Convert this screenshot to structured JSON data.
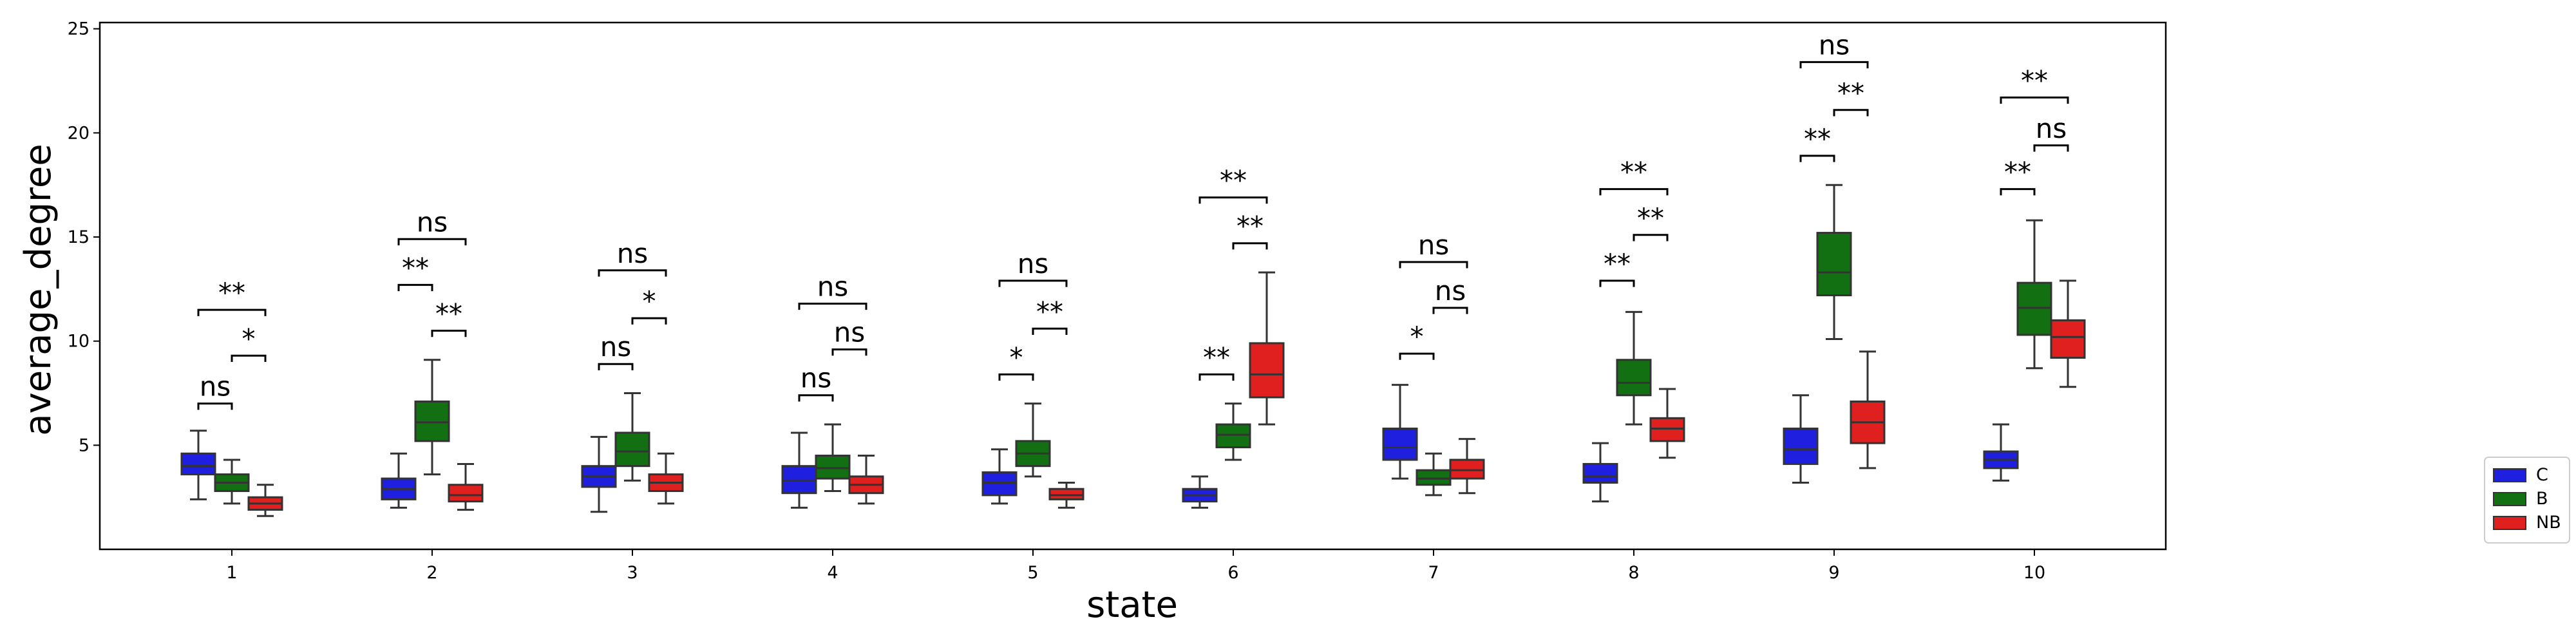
{
  "chart_data": {
    "type": "boxplot",
    "xlabel": "state",
    "ylabel": "average_degree",
    "ylim": [
      0,
      25.3
    ],
    "yticks": [
      5,
      10,
      15,
      20,
      25
    ],
    "categories": [
      "1",
      "2",
      "3",
      "4",
      "5",
      "6",
      "7",
      "8",
      "9",
      "10"
    ],
    "legend": {
      "position": "outside-right-bottom"
    },
    "series": [
      {
        "name": "C",
        "color": "#1f1fe0",
        "boxes": [
          {
            "whislo": 2.4,
            "q1": 3.6,
            "med": 4.0,
            "q3": 4.6,
            "whishi": 5.7
          },
          {
            "whislo": 2.0,
            "q1": 2.4,
            "med": 2.9,
            "q3": 3.4,
            "whishi": 4.6
          },
          {
            "whislo": 1.8,
            "q1": 3.0,
            "med": 3.5,
            "q3": 4.0,
            "whishi": 5.4
          },
          {
            "whislo": 2.0,
            "q1": 2.7,
            "med": 3.3,
            "q3": 4.0,
            "whishi": 5.6
          },
          {
            "whislo": 2.2,
            "q1": 2.6,
            "med": 3.2,
            "q3": 3.7,
            "whishi": 4.8
          },
          {
            "whislo": 2.0,
            "q1": 2.3,
            "med": 2.6,
            "q3": 2.9,
            "whishi": 3.5
          },
          {
            "whislo": 3.4,
            "q1": 4.3,
            "med": 4.9,
            "q3": 5.8,
            "whishi": 7.9
          },
          {
            "whislo": 2.3,
            "q1": 3.2,
            "med": 3.5,
            "q3": 4.1,
            "whishi": 5.1
          },
          {
            "whislo": 3.2,
            "q1": 4.1,
            "med": 4.8,
            "q3": 5.8,
            "whishi": 7.4
          },
          {
            "whislo": 3.3,
            "q1": 3.9,
            "med": 4.3,
            "q3": 4.7,
            "whishi": 6.0
          }
        ]
      },
      {
        "name": "B",
        "color": "#127012",
        "boxes": [
          {
            "whislo": 2.2,
            "q1": 2.8,
            "med": 3.2,
            "q3": 3.6,
            "whishi": 4.3
          },
          {
            "whislo": 3.6,
            "q1": 5.2,
            "med": 6.1,
            "q3": 7.1,
            "whishi": 9.1
          },
          {
            "whislo": 3.3,
            "q1": 4.0,
            "med": 4.7,
            "q3": 5.6,
            "whishi": 7.5
          },
          {
            "whislo": 2.8,
            "q1": 3.4,
            "med": 3.9,
            "q3": 4.5,
            "whishi": 6.0
          },
          {
            "whislo": 3.5,
            "q1": 4.0,
            "med": 4.6,
            "q3": 5.2,
            "whishi": 7.0
          },
          {
            "whislo": 4.3,
            "q1": 4.9,
            "med": 5.5,
            "q3": 6.0,
            "whishi": 7.0
          },
          {
            "whislo": 2.6,
            "q1": 3.1,
            "med": 3.4,
            "q3": 3.8,
            "whishi": 4.6
          },
          {
            "whislo": 6.0,
            "q1": 7.4,
            "med": 8.0,
            "q3": 9.1,
            "whishi": 11.4
          },
          {
            "whislo": 10.1,
            "q1": 12.2,
            "med": 13.3,
            "q3": 15.2,
            "whishi": 17.5
          },
          {
            "whislo": 8.7,
            "q1": 10.3,
            "med": 11.6,
            "q3": 12.8,
            "whishi": 15.8
          }
        ]
      },
      {
        "name": "NB",
        "color": "#e01f1f",
        "boxes": [
          {
            "whislo": 1.6,
            "q1": 1.9,
            "med": 2.2,
            "q3": 2.5,
            "whishi": 3.1
          },
          {
            "whislo": 1.9,
            "q1": 2.3,
            "med": 2.6,
            "q3": 3.1,
            "whishi": 4.1
          },
          {
            "whislo": 2.2,
            "q1": 2.8,
            "med": 3.2,
            "q3": 3.6,
            "whishi": 4.6
          },
          {
            "whislo": 2.2,
            "q1": 2.7,
            "med": 3.1,
            "q3": 3.5,
            "whishi": 4.5
          },
          {
            "whislo": 2.0,
            "q1": 2.4,
            "med": 2.6,
            "q3": 2.9,
            "whishi": 3.2
          },
          {
            "whislo": 6.0,
            "q1": 7.3,
            "med": 8.4,
            "q3": 9.9,
            "whishi": 13.3
          },
          {
            "whislo": 2.7,
            "q1": 3.4,
            "med": 3.8,
            "q3": 4.3,
            "whishi": 5.3
          },
          {
            "whislo": 4.4,
            "q1": 5.2,
            "med": 5.8,
            "q3": 6.3,
            "whishi": 7.7
          },
          {
            "whislo": 3.9,
            "q1": 5.1,
            "med": 6.1,
            "q3": 7.1,
            "whishi": 9.5
          },
          {
            "whislo": 7.8,
            "q1": 9.2,
            "med": 10.2,
            "q3": 11.0,
            "whishi": 12.9
          }
        ]
      }
    ],
    "annotations": [
      {
        "category": "1",
        "from": "C",
        "to": "B",
        "y": 7.0,
        "label": "ns"
      },
      {
        "category": "1",
        "from": "B",
        "to": "NB",
        "y": 9.3,
        "label": "*"
      },
      {
        "category": "1",
        "from": "C",
        "to": "NB",
        "y": 11.5,
        "label": "**"
      },
      {
        "category": "2",
        "from": "C",
        "to": "B",
        "y": 12.7,
        "label": "**"
      },
      {
        "category": "2",
        "from": "B",
        "to": "NB",
        "y": 10.5,
        "label": "**"
      },
      {
        "category": "2",
        "from": "C",
        "to": "NB",
        "y": 14.9,
        "label": "ns"
      },
      {
        "category": "3",
        "from": "C",
        "to": "B",
        "y": 8.9,
        "label": "ns"
      },
      {
        "category": "3",
        "from": "B",
        "to": "NB",
        "y": 11.1,
        "label": "*"
      },
      {
        "category": "3",
        "from": "C",
        "to": "NB",
        "y": 13.4,
        "label": "ns"
      },
      {
        "category": "4",
        "from": "C",
        "to": "B",
        "y": 7.4,
        "label": "ns"
      },
      {
        "category": "4",
        "from": "B",
        "to": "NB",
        "y": 9.6,
        "label": "ns"
      },
      {
        "category": "4",
        "from": "C",
        "to": "NB",
        "y": 11.8,
        "label": "ns"
      },
      {
        "category": "5",
        "from": "C",
        "to": "B",
        "y": 8.4,
        "label": "*"
      },
      {
        "category": "5",
        "from": "B",
        "to": "NB",
        "y": 10.6,
        "label": "**"
      },
      {
        "category": "5",
        "from": "C",
        "to": "NB",
        "y": 12.9,
        "label": "ns"
      },
      {
        "category": "6",
        "from": "C",
        "to": "B",
        "y": 8.4,
        "label": "**"
      },
      {
        "category": "6",
        "from": "B",
        "to": "NB",
        "y": 14.7,
        "label": "**"
      },
      {
        "category": "6",
        "from": "C",
        "to": "NB",
        "y": 16.9,
        "label": "**"
      },
      {
        "category": "7",
        "from": "C",
        "to": "B",
        "y": 9.4,
        "label": "*"
      },
      {
        "category": "7",
        "from": "B",
        "to": "NB",
        "y": 11.6,
        "label": "ns"
      },
      {
        "category": "7",
        "from": "C",
        "to": "NB",
        "y": 13.8,
        "label": "ns"
      },
      {
        "category": "8",
        "from": "C",
        "to": "B",
        "y": 12.9,
        "label": "**"
      },
      {
        "category": "8",
        "from": "B",
        "to": "NB",
        "y": 15.1,
        "label": "**"
      },
      {
        "category": "8",
        "from": "C",
        "to": "NB",
        "y": 17.3,
        "label": "**"
      },
      {
        "category": "9",
        "from": "C",
        "to": "B",
        "y": 18.9,
        "label": "**"
      },
      {
        "category": "9",
        "from": "B",
        "to": "NB",
        "y": 21.1,
        "label": "**"
      },
      {
        "category": "9",
        "from": "C",
        "to": "NB",
        "y": 23.4,
        "label": "ns"
      },
      {
        "category": "10",
        "from": "C",
        "to": "B",
        "y": 17.3,
        "label": "**"
      },
      {
        "category": "10",
        "from": "B",
        "to": "NB",
        "y": 19.4,
        "label": "ns"
      },
      {
        "category": "10",
        "from": "C",
        "to": "NB",
        "y": 21.7,
        "label": "**"
      }
    ]
  }
}
